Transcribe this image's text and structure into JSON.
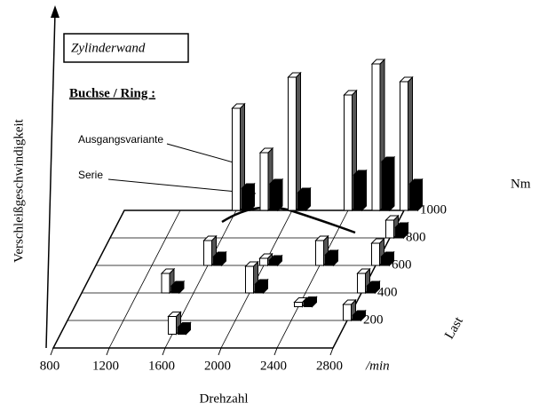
{
  "chart_data": {
    "type": "bar3d",
    "title": "Zylinderwand",
    "subtitle": "Buchse / Ring :",
    "y_label": "Verschleißgeschwindigkeit",
    "x_label": "Drehzahl",
    "x_unit": "/min",
    "z_label": "Last",
    "z_unit": "Nm",
    "xlim": [
      800,
      2800
    ],
    "xticks": [
      800,
      1200,
      1600,
      2000,
      2400,
      2800
    ],
    "zlim": [
      0,
      1000
    ],
    "zticks": [
      200,
      400,
      600,
      800,
      1000
    ],
    "x": [
      1600,
      1800,
      2000,
      2400,
      2600,
      2800,
      1600,
      1400,
      1600,
      2000,
      2000,
      2400,
      2400,
      2800,
      2800,
      2800,
      2800
    ],
    "z": [
      1000,
      1000,
      1000,
      1000,
      1000,
      1000,
      100,
      400,
      600,
      400,
      600,
      300,
      600,
      200,
      400,
      600,
      800
    ],
    "series": [
      {
        "name": "Ausgangsvariante",
        "color": "#ffffff",
        "values": [
          115,
          65,
          150,
          130,
          165,
          145,
          20,
          22,
          28,
          30,
          8,
          5,
          28,
          18,
          22,
          25,
          20
        ]
      },
      {
        "name": "Serie",
        "color": "#000000",
        "values": [
          25,
          30,
          20,
          40,
          55,
          30,
          8,
          8,
          10,
          10,
          6,
          6,
          12,
          6,
          8,
          10,
          12
        ]
      }
    ]
  }
}
